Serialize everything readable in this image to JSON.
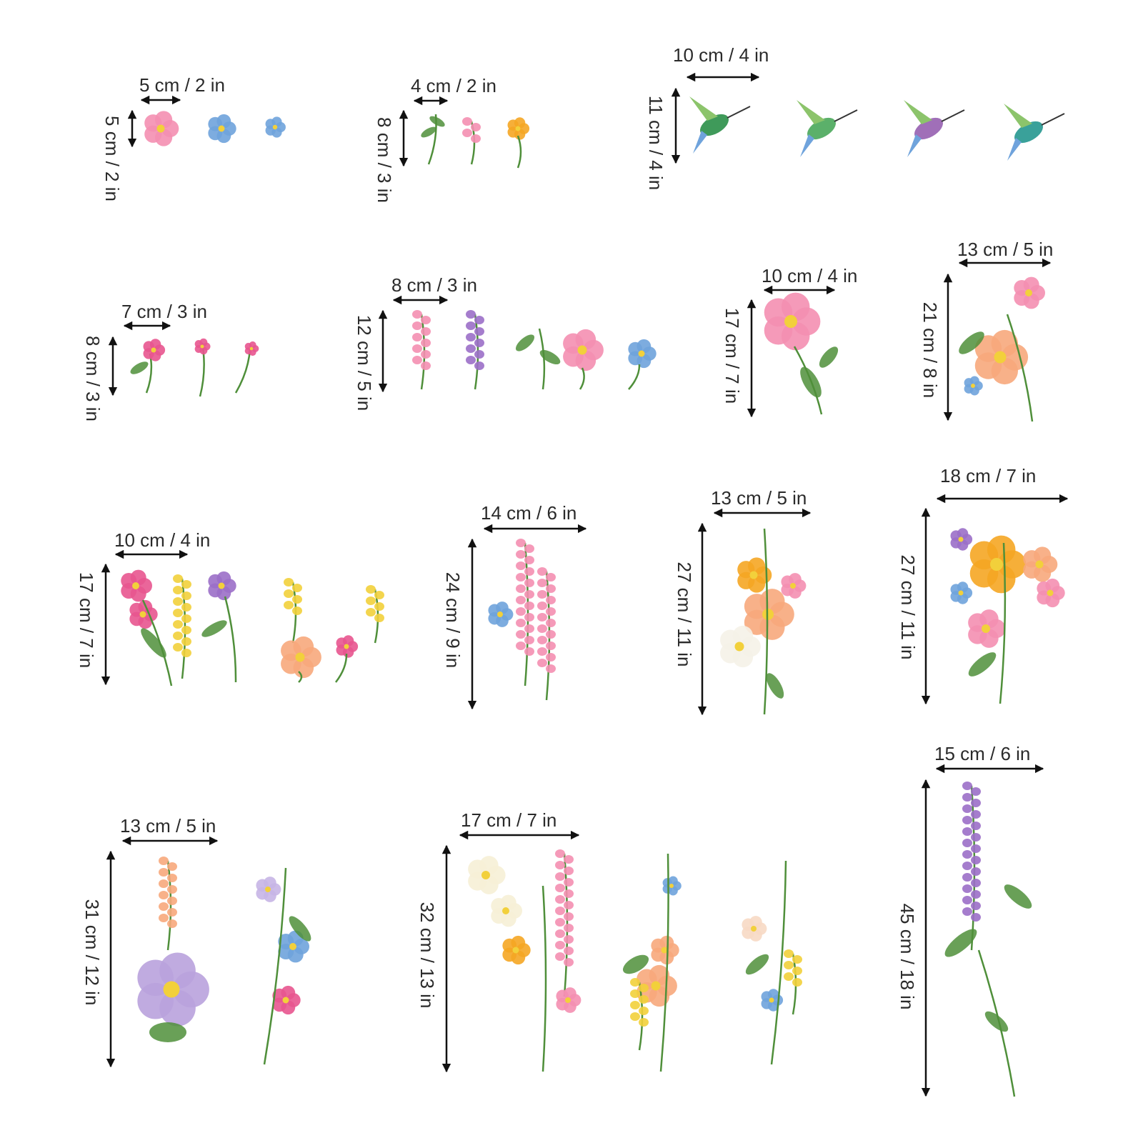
{
  "stickers": [
    {
      "name": "small-blossoms",
      "width_label": "5 cm / 2 in",
      "height_label": "5 cm / 2 in"
    },
    {
      "name": "tiny-sprigs",
      "width_label": "4 cm / 2 in",
      "height_label": "8 cm / 3 in"
    },
    {
      "name": "hummingbirds",
      "width_label": "10 cm / 4 in",
      "height_label": "11 cm / 4 in"
    },
    {
      "name": "pink-buds",
      "width_label": "7 cm / 3 in",
      "height_label": "8 cm / 3 in"
    },
    {
      "name": "mixed-stems",
      "width_label": "8 cm / 3 in",
      "height_label": "12 cm / 5 in"
    },
    {
      "name": "pink-peony",
      "width_label": "10 cm / 4 in",
      "height_label": "17 cm / 7 in"
    },
    {
      "name": "peach-rose-bouquet",
      "width_label": "13 cm / 5 in",
      "height_label": "21 cm / 8 in"
    },
    {
      "name": "tulip-group",
      "width_label": "10 cm / 4 in",
      "height_label": "17 cm / 7 in"
    },
    {
      "name": "pink-larkspur",
      "width_label": "14 cm / 6 in",
      "height_label": "24 cm / 9 in"
    },
    {
      "name": "poppy-rose-stem",
      "width_label": "13 cm / 5 in",
      "height_label": "27 cm / 11 in"
    },
    {
      "name": "wildflower-bouquet",
      "width_label": "18 cm / 7 in",
      "height_label": "27 cm / 11 in"
    },
    {
      "name": "hydrangea-set",
      "width_label": "13 cm / 5 in",
      "height_label": "31 cm / 12 in"
    },
    {
      "name": "foxglove-poppy-set",
      "width_label": "17 cm / 7 in",
      "height_label": "32 cm / 13 in"
    },
    {
      "name": "purple-foxglove",
      "width_label": "15 cm / 6 in",
      "height_label": "45 cm / 18 in"
    }
  ],
  "colors": {
    "pink": "#e8558f",
    "rose": "#f48fb1",
    "peach": "#f7a97c",
    "orange": "#f5a623",
    "yellow": "#f2d03b",
    "blue": "#6fa3dc",
    "purple": "#9b6fc8",
    "leaf": "#4f8f3a",
    "leaf_light": "#8cc46b"
  }
}
